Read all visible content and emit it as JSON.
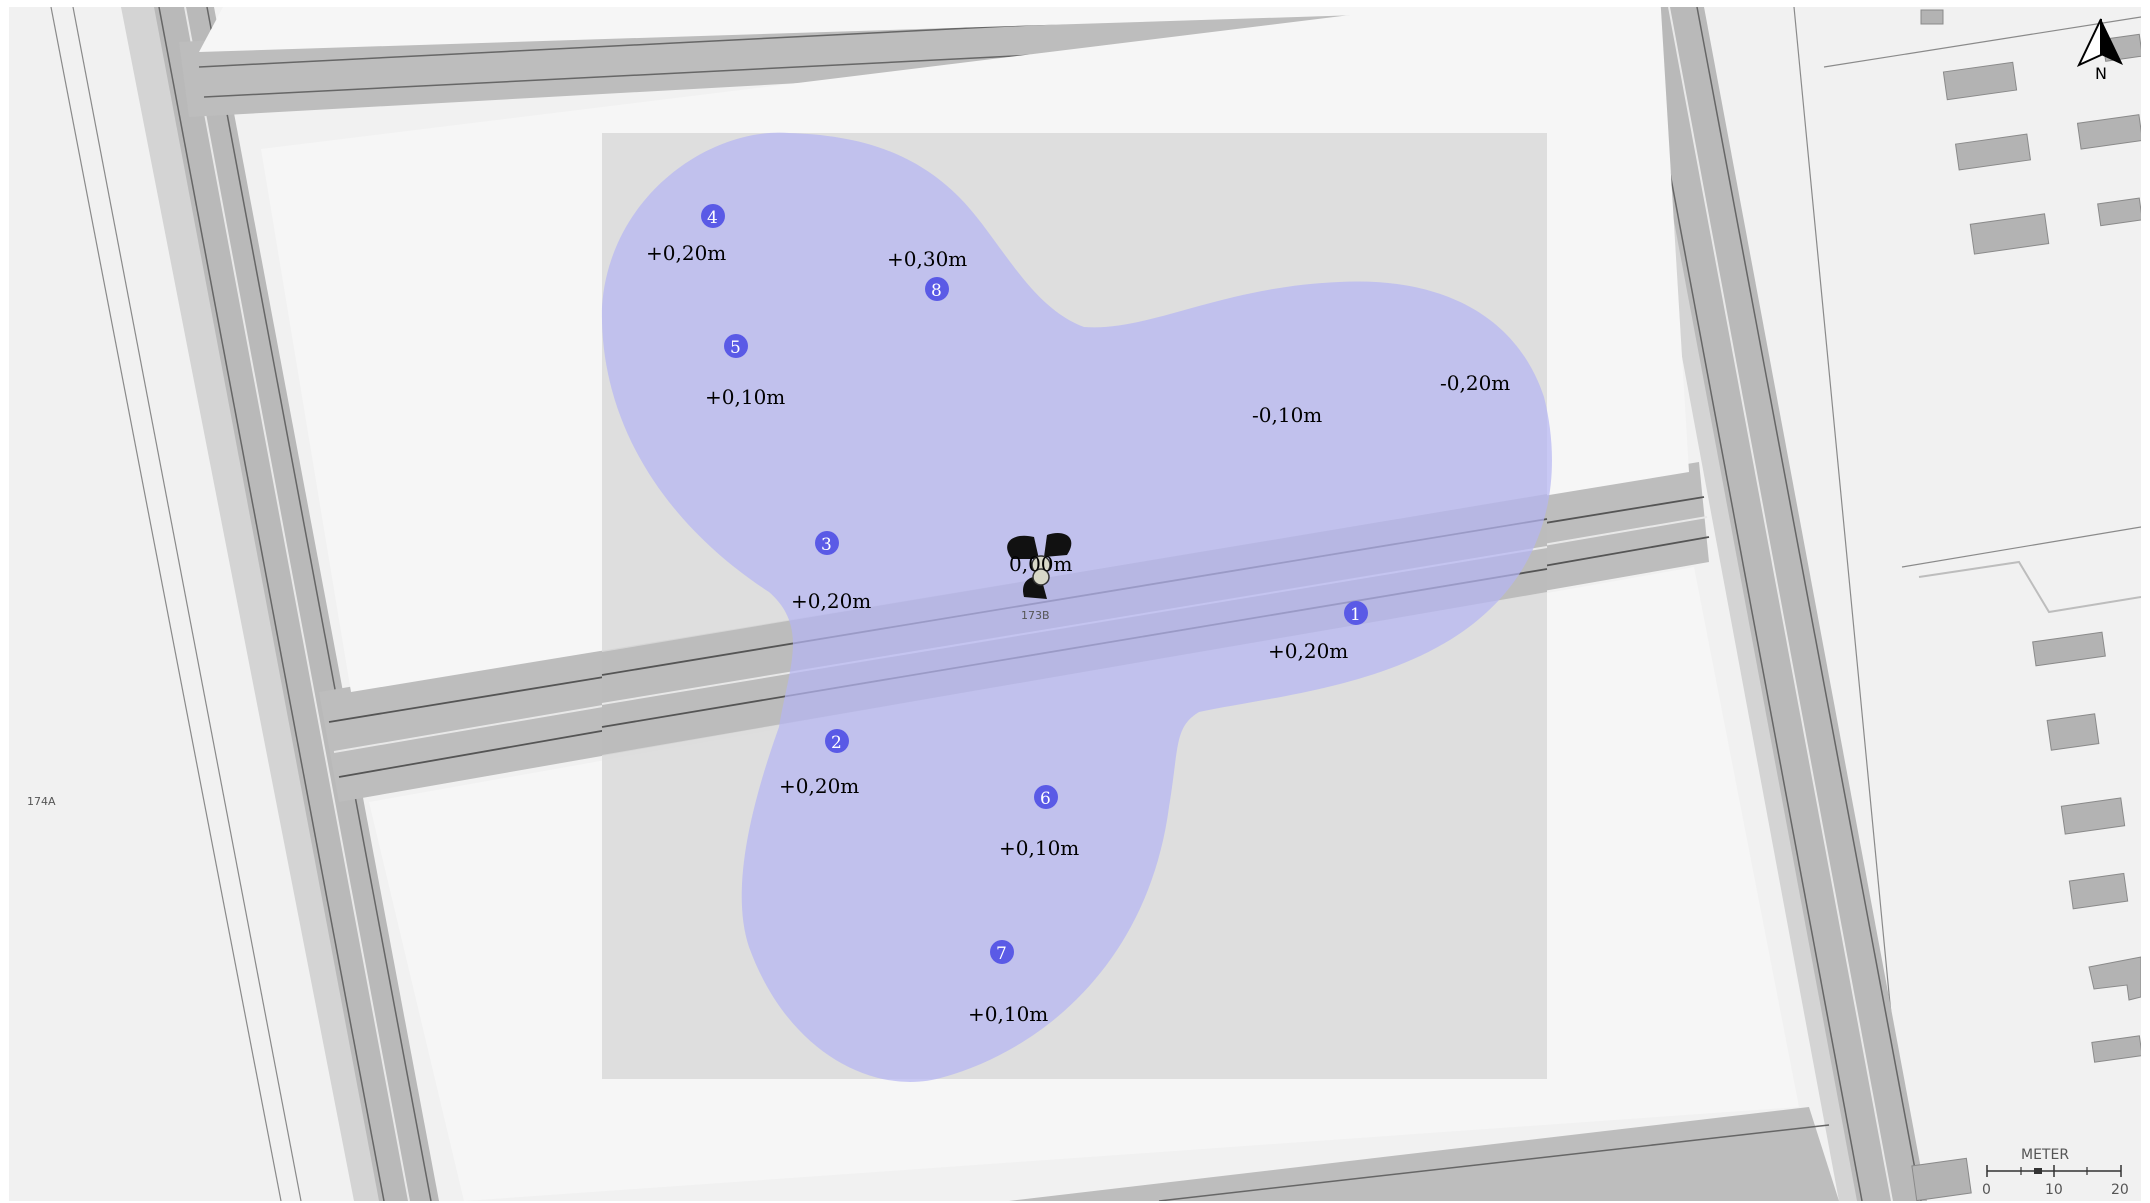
{
  "map": {
    "parcel_labels": {
      "left": "174A",
      "center": "173B"
    },
    "north_label": "N",
    "scale_bar": {
      "unit": "METER",
      "ticks": [
        "0",
        "10",
        "20"
      ]
    },
    "colors": {
      "background": "#f1f1f1",
      "road": "#b9b9b9",
      "road_dark": "#a6a6a6",
      "building": "#b3b3b3",
      "analysis_area": "#dcdcdc",
      "coverage_zone": "#b8b8f0",
      "measurement_point": "#5a5ae6"
    },
    "source_label": "0,00m",
    "measurement_points": [
      {
        "id": "1",
        "label": "+0,20m"
      },
      {
        "id": "2",
        "label": "+0,20m"
      },
      {
        "id": "3",
        "label": "+0,20m"
      },
      {
        "id": "4",
        "label": "+0,20m"
      },
      {
        "id": "5",
        "label": "+0,10m"
      },
      {
        "id": "6",
        "label": "+0,10m"
      },
      {
        "id": "7",
        "label": "+0,10m"
      },
      {
        "id": "8",
        "label": "+0,30m"
      }
    ],
    "extra_labels": [
      "-0,10m",
      "-0,20m"
    ]
  }
}
